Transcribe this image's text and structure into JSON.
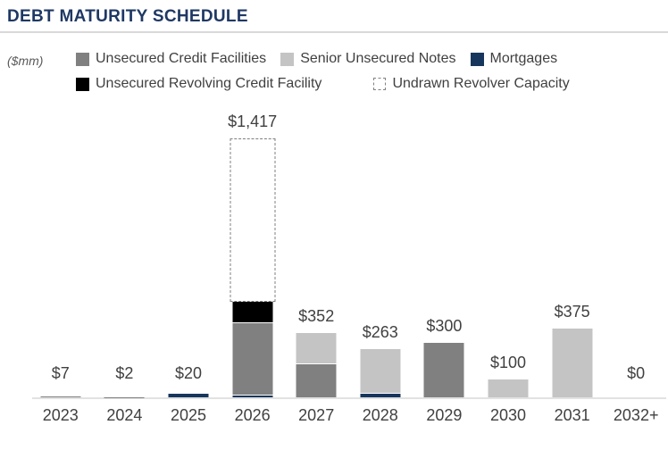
{
  "header": {
    "title": "DEBT MATURITY SCHEDULE",
    "unit_label": "($mm)"
  },
  "legend": {
    "row1": [
      {
        "label": "Unsecured Credit Facilities",
        "color": "#808080",
        "style": "solid"
      },
      {
        "label": "Senior Unsecured Notes",
        "color": "#c4c4c4",
        "style": "solid"
      },
      {
        "label": "Mortgages",
        "color": "#17365d",
        "style": "solid"
      }
    ],
    "row2": [
      {
        "label": "Unsecured Revolving Credit Facility",
        "color": "#000000",
        "style": "solid"
      },
      {
        "label": "Undrawn Revolver Capacity",
        "color": "#ffffff",
        "style": "dashed"
      }
    ]
  },
  "chart_data": {
    "type": "bar",
    "stacked": true,
    "title": "DEBT MATURITY SCHEDULE",
    "unit": "$mm",
    "categories": [
      "2023",
      "2024",
      "2025",
      "2026",
      "2027",
      "2028",
      "2029",
      "2030",
      "2031",
      "2032+"
    ],
    "series": [
      {
        "name": "Mortgages",
        "color": "#17365d",
        "dashed": false,
        "values": [
          0,
          0,
          20,
          15,
          0,
          25,
          0,
          0,
          0,
          0
        ]
      },
      {
        "name": "Unsecured Credit Facilities",
        "color": "#808080",
        "dashed": false,
        "values": [
          7,
          2,
          0,
          395,
          185,
          0,
          300,
          0,
          0,
          0
        ]
      },
      {
        "name": "Senior Unsecured Notes",
        "color": "#c4c4c4",
        "dashed": false,
        "values": [
          0,
          0,
          0,
          0,
          167,
          238,
          0,
          100,
          375,
          0
        ]
      },
      {
        "name": "Unsecured Revolving Credit Facility",
        "color": "#000000",
        "dashed": false,
        "values": [
          0,
          0,
          0,
          112,
          0,
          0,
          0,
          0,
          0,
          0
        ]
      },
      {
        "name": "Undrawn Revolver Capacity",
        "color": "#ffffff",
        "dashed": true,
        "values": [
          0,
          0,
          0,
          895,
          0,
          0,
          0,
          0,
          0,
          0
        ]
      }
    ],
    "totals": [
      "$7",
      "$2",
      "$20",
      "$1,417",
      "$352",
      "$263",
      "$300",
      "$100",
      "$375",
      "$0"
    ],
    "xlabel": "",
    "ylabel": "",
    "ylim": [
      0,
      1500
    ],
    "y_axis_visible": false,
    "gridlines": false,
    "legend_position": "top"
  },
  "colors": {
    "title": "#1f3864",
    "text": "#404040",
    "axis_line": "#e2e2e2",
    "divider": "#d9d9d9"
  }
}
